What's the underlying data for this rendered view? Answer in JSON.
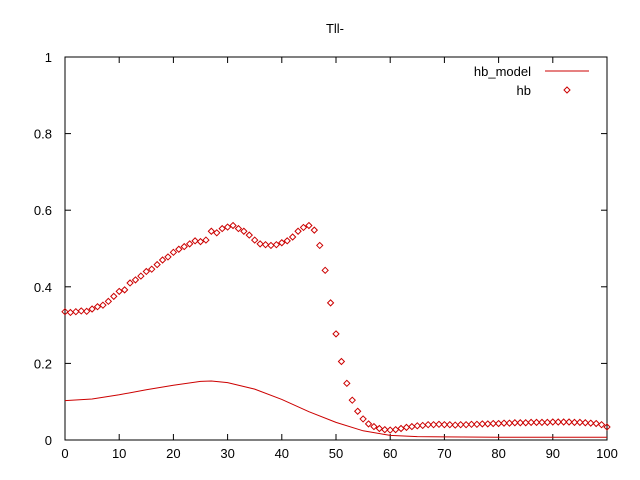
{
  "chart_data": {
    "type": "line",
    "title": "Tll-",
    "xlabel": "",
    "ylabel": "",
    "xlim": [
      0,
      100
    ],
    "ylim": [
      0,
      1
    ],
    "x_ticks": [
      "0",
      "10",
      "20",
      "30",
      "40",
      "50",
      "60",
      "70",
      "80",
      "90",
      "100"
    ],
    "y_ticks": [
      "0",
      "0.2",
      "0.4",
      "0.6",
      "0.8",
      "1"
    ],
    "grid": false,
    "legend_position": "top-right",
    "series": [
      {
        "name": "hb_model",
        "style": "line",
        "color": "#cc0000",
        "x": [
          0,
          5,
          10,
          15,
          20,
          25,
          27,
          30,
          35,
          40,
          45,
          50,
          55,
          60,
          65,
          70,
          80,
          90,
          100
        ],
        "y": [
          0.103,
          0.107,
          0.118,
          0.131,
          0.143,
          0.153,
          0.154,
          0.15,
          0.133,
          0.106,
          0.074,
          0.046,
          0.024,
          0.012,
          0.009,
          0.008,
          0.007,
          0.007,
          0.007
        ]
      },
      {
        "name": "hb",
        "style": "points",
        "color": "#cc0000",
        "x": [
          0,
          1,
          2,
          3,
          4,
          5,
          6,
          7,
          8,
          9,
          10,
          11,
          12,
          13,
          14,
          15,
          16,
          17,
          18,
          19,
          20,
          21,
          22,
          23,
          24,
          25,
          26,
          27,
          28,
          29,
          30,
          31,
          32,
          33,
          34,
          35,
          36,
          37,
          38,
          39,
          40,
          41,
          42,
          43,
          44,
          45,
          46,
          47,
          48,
          49,
          50,
          51,
          52,
          53,
          54,
          55,
          56,
          57,
          58,
          59,
          60,
          61,
          62,
          63,
          64,
          65,
          66,
          67,
          68,
          69,
          70,
          71,
          72,
          73,
          74,
          75,
          76,
          77,
          78,
          79,
          80,
          81,
          82,
          83,
          84,
          85,
          86,
          87,
          88,
          89,
          90,
          91,
          92,
          93,
          94,
          95,
          96,
          97,
          98,
          99,
          100
        ],
        "y": [
          0.335,
          0.333,
          0.335,
          0.337,
          0.336,
          0.342,
          0.348,
          0.352,
          0.362,
          0.375,
          0.388,
          0.392,
          0.41,
          0.418,
          0.428,
          0.44,
          0.446,
          0.458,
          0.47,
          0.478,
          0.49,
          0.498,
          0.505,
          0.512,
          0.52,
          0.518,
          0.522,
          0.545,
          0.541,
          0.552,
          0.556,
          0.56,
          0.552,
          0.545,
          0.535,
          0.522,
          0.512,
          0.51,
          0.508,
          0.51,
          0.515,
          0.52,
          0.53,
          0.545,
          0.555,
          0.56,
          0.548,
          0.508,
          0.443,
          0.358,
          0.277,
          0.205,
          0.148,
          0.104,
          0.075,
          0.055,
          0.042,
          0.035,
          0.03,
          0.027,
          0.026,
          0.027,
          0.03,
          0.033,
          0.035,
          0.037,
          0.038,
          0.04,
          0.04,
          0.041,
          0.04,
          0.04,
          0.039,
          0.04,
          0.04,
          0.041,
          0.041,
          0.042,
          0.042,
          0.043,
          0.043,
          0.044,
          0.044,
          0.045,
          0.045,
          0.045,
          0.046,
          0.046,
          0.046,
          0.046,
          0.047,
          0.047,
          0.047,
          0.047,
          0.046,
          0.046,
          0.045,
          0.044,
          0.043,
          0.04,
          0.034
        ]
      }
    ]
  }
}
